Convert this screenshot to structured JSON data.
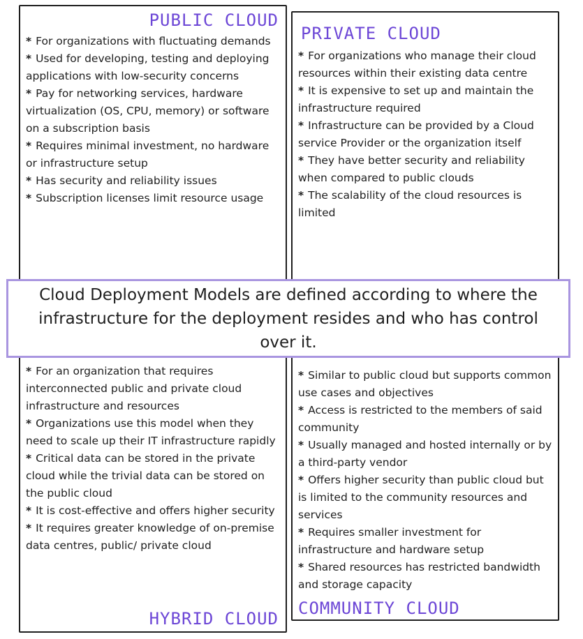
{
  "colors": {
    "accent": "#6c46d6",
    "callout_border": "#a995e0",
    "text": "#1e1e1e"
  },
  "callout": {
    "text": "Cloud Deployment Models are defined according to where the infrastructure for the deployment resides and who has control over it."
  },
  "public_cloud": {
    "title": "PUBLIC CLOUD",
    "items": [
      "For organizations with fluctuating demands",
      "Used for developing, testing and deploying applications with low-security concerns",
      "Pay for networking services, hardware virtualization (OS, CPU, memory) or software on a subscription basis",
      "Requires minimal investment, no hardware or infrastructure setup",
      "Has security and reliability issues",
      "Subscription licenses limit resource usage"
    ]
  },
  "private_cloud": {
    "title": "PRIVATE CLOUD",
    "items": [
      "For organizations who manage their cloud resources within their existing data centre",
      "It is expensive to set up and maintain the infrastructure required",
      "Infrastructure can be provided by a Cloud service Provider or the organization itself",
      "They have better security and reliability when compared to public clouds",
      "The scalability of the cloud resources is limited"
    ]
  },
  "hybrid_cloud": {
    "title": "HYBRID CLOUD",
    "items": [
      "For an organization that requires interconnected public and private cloud infrastructure and resources",
      "Organizations use this model when they need to scale up their IT infrastructure rapidly",
      "Critical data can be stored in the private cloud while the trivial data can be stored on the public cloud",
      "It is cost-effective and offers higher security",
      "It requires greater knowledge of on-premise data centres, public/ private cloud"
    ]
  },
  "community_cloud": {
    "title": "COMMUNITY CLOUD",
    "items": [
      "Similar to public cloud but supports common use cases and objectives",
      "Access is restricted to the members of said community",
      "Usually managed and hosted internally or by a third-party vendor",
      "Offers higher security than public cloud but is limited to the community resources and services",
      "Requires smaller investment for infrastructure and hardware setup",
      "Shared resources has restricted bandwidth and storage capacity"
    ]
  }
}
